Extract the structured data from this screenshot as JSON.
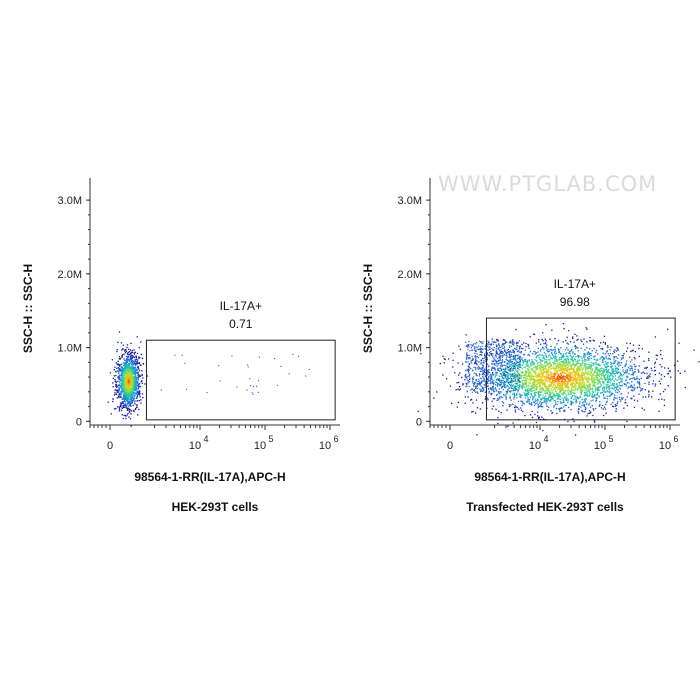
{
  "chart_data": [
    {
      "type": "scatter",
      "subtype": "flow-cytometry-density",
      "caption": "HEK-293T cells",
      "xlabel": "98564-1-RR(IL-17A),APC-H",
      "ylabel": "SSC-H :: SSC-H",
      "x_scale": "biexponential",
      "x_ticks": [
        {
          "value": 0,
          "label": "0"
        },
        {
          "value": 10000,
          "label": "10",
          "exp": "4"
        },
        {
          "value": 100000,
          "label": "10",
          "exp": "5"
        },
        {
          "value": 1000000,
          "label": "10",
          "exp": "6"
        }
      ],
      "y_ticks": [
        {
          "value": 0,
          "label": "0"
        },
        {
          "value": 1000000,
          "label": "1.0M"
        },
        {
          "value": 2000000,
          "label": "2.0M"
        },
        {
          "value": 3000000,
          "label": "3.0M"
        }
      ],
      "ylim": [
        -50000,
        3300000
      ],
      "gate": {
        "name": "IL-17A+",
        "value": "0.71",
        "x_range": [
          1500,
          1200000
        ],
        "y_range": [
          20000,
          1100000
        ]
      },
      "population_main": {
        "x_center": 0,
        "y_center": 550000
      },
      "grid": false
    },
    {
      "type": "scatter",
      "subtype": "flow-cytometry-density",
      "caption": "Transfected HEK-293T cells",
      "xlabel": "98564-1-RR(IL-17A),APC-H",
      "ylabel": "SSC-H :: SSC-H",
      "x_scale": "biexponential",
      "x_ticks": [
        {
          "value": 0,
          "label": "0"
        },
        {
          "value": 10000,
          "label": "10",
          "exp": "4"
        },
        {
          "value": 100000,
          "label": "10",
          "exp": "5"
        },
        {
          "value": 1000000,
          "label": "10",
          "exp": "6"
        }
      ],
      "y_ticks": [
        {
          "value": 0,
          "label": "0"
        },
        {
          "value": 1000000,
          "label": "1.0M"
        },
        {
          "value": 2000000,
          "label": "2.0M"
        },
        {
          "value": 3000000,
          "label": "3.0M"
        }
      ],
      "ylim": [
        -50000,
        3300000
      ],
      "gate": {
        "name": "IL-17A+",
        "value": "96.98",
        "x_range": [
          1500,
          1200000
        ],
        "y_range": [
          20000,
          1400000
        ]
      },
      "population_main": {
        "x_center": 20000,
        "y_center": 600000
      },
      "grid": false
    }
  ],
  "watermark": "WWW.PTGLAB.COM",
  "colors": {
    "density_low": "#1f2bd4",
    "density_mid": "#17c3a8",
    "density_high": "#ff3b00",
    "axis": "#333333"
  }
}
